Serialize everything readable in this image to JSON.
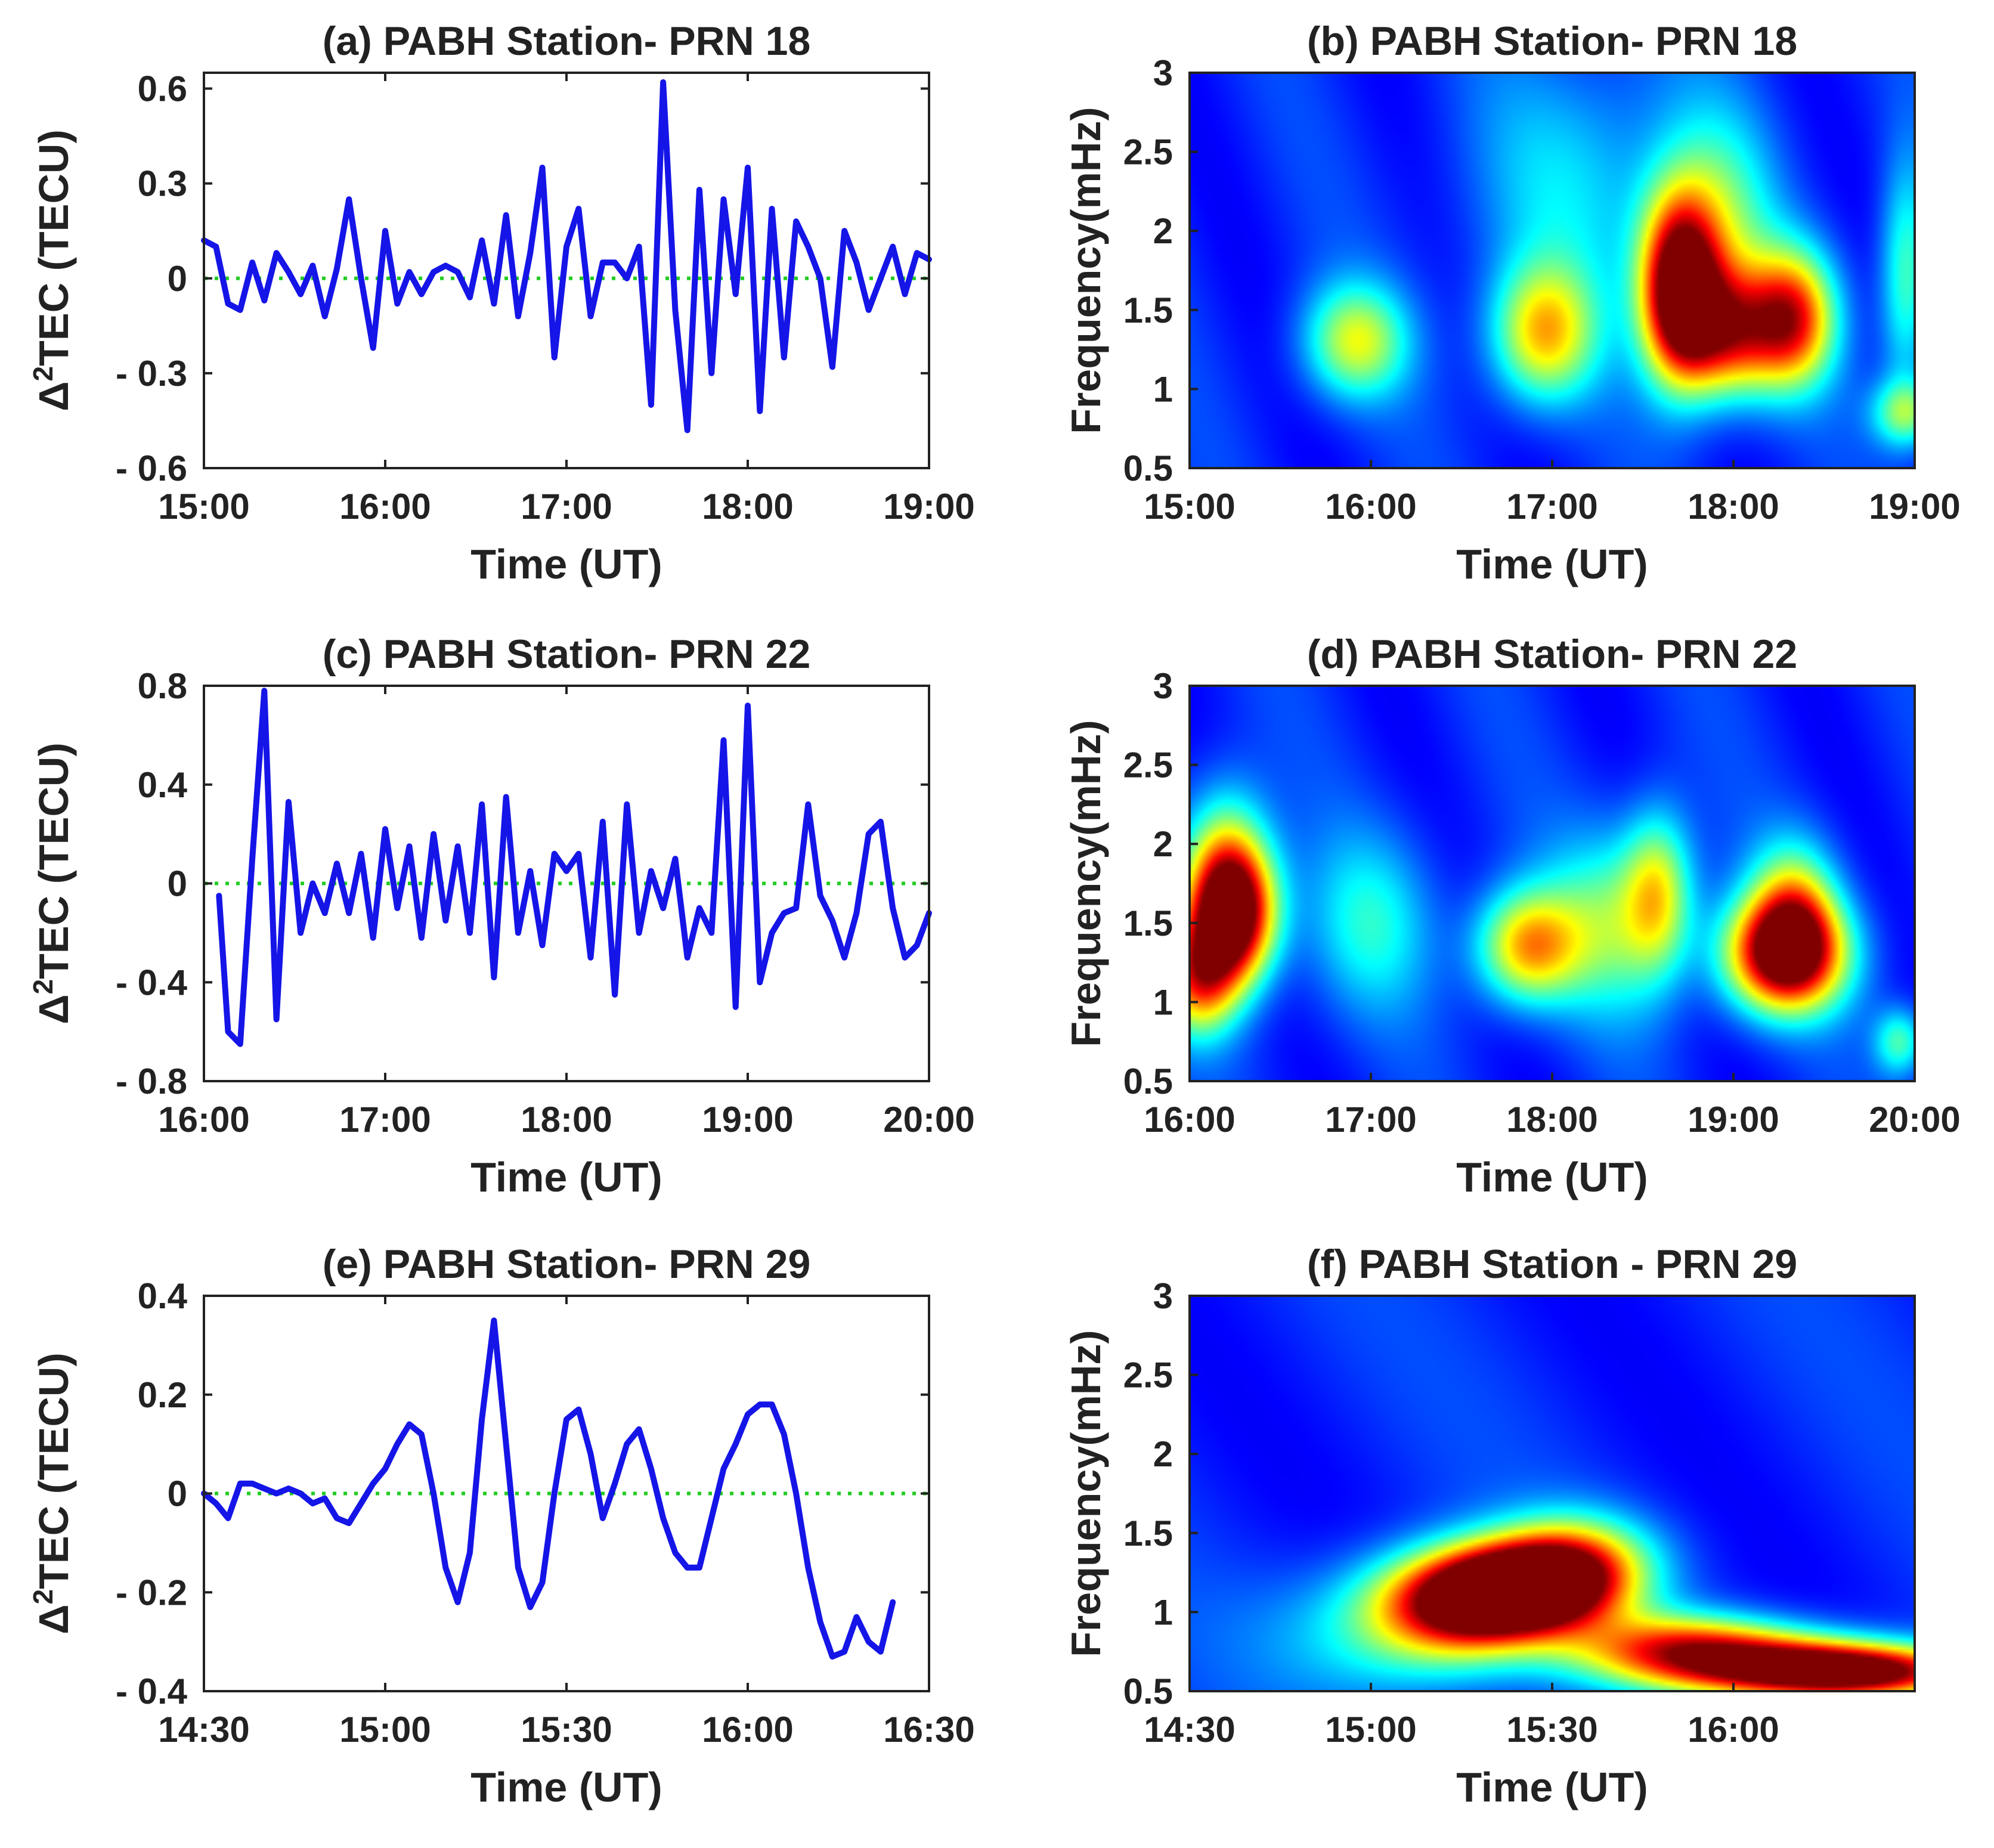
{
  "chart_data": [
    {
      "id": "a",
      "type": "line",
      "title": "(a) PABH Station- PRN 18",
      "xlabel": "Time (UT)",
      "ylabel_pre": "Δ",
      "ylabel_sup": "2",
      "ylabel_post": "TEC (TECU)",
      "xlim": [
        0,
        240
      ],
      "ylim": [
        -0.6,
        0.65
      ],
      "xticks": [
        0,
        60,
        120,
        180,
        240
      ],
      "xtick_labels": [
        "15:00",
        "16:00",
        "17:00",
        "18:00",
        "19:00"
      ],
      "yticks": [
        -0.6,
        -0.3,
        0,
        0.3,
        0.6
      ],
      "ytick_labels": [
        "- 0.6",
        "- 0.3",
        "0",
        "0.3",
        "0.6"
      ],
      "line_color": "#1515e8",
      "zero_color": "#22cc22",
      "series": [
        {
          "name": "Δ²TEC",
          "x": [
            0,
            4,
            8,
            12,
            16,
            20,
            24,
            28,
            32,
            36,
            40,
            44,
            48,
            52,
            56,
            60,
            64,
            68,
            72,
            76,
            80,
            84,
            88,
            92,
            96,
            100,
            104,
            108,
            112,
            116,
            120,
            124,
            128,
            132,
            136,
            140,
            144,
            148,
            152,
            156,
            160,
            164,
            168,
            172,
            176,
            180,
            184,
            188,
            192,
            196,
            200,
            204,
            208,
            212,
            216,
            220,
            224,
            228,
            232,
            236,
            240
          ],
          "y": [
            0.12,
            0.1,
            -0.08,
            -0.1,
            0.05,
            -0.07,
            0.08,
            0.02,
            -0.05,
            0.04,
            -0.12,
            0.03,
            0.25,
            0.0,
            -0.22,
            0.15,
            -0.08,
            0.02,
            -0.05,
            0.02,
            0.04,
            0.02,
            -0.06,
            0.12,
            -0.08,
            0.2,
            -0.12,
            0.08,
            0.35,
            -0.25,
            0.1,
            0.22,
            -0.12,
            0.05,
            0.05,
            0.0,
            0.1,
            -0.4,
            0.62,
            -0.1,
            -0.48,
            0.28,
            -0.3,
            0.25,
            -0.05,
            0.35,
            -0.42,
            0.22,
            -0.25,
            0.18,
            0.1,
            0.0,
            -0.28,
            0.15,
            0.05,
            -0.1,
            0.0,
            0.1,
            -0.05,
            0.08,
            0.06
          ]
        }
      ]
    },
    {
      "id": "b",
      "type": "heatmap",
      "title": "(b) PABH Station- PRN 18",
      "xlabel": "Time (UT)",
      "ylabel": "Frequency(mHz)",
      "xlim": [
        0,
        240
      ],
      "ylim": [
        0.5,
        3
      ],
      "xticks": [
        0,
        60,
        120,
        180,
        240
      ],
      "xtick_labels": [
        "15:00",
        "16:00",
        "17:00",
        "18:00",
        "19:00"
      ],
      "yticks": [
        0.5,
        1,
        1.5,
        2,
        2.5,
        3
      ],
      "ytick_labels": [
        "0.5",
        "1",
        "1.5",
        "2",
        "2.5",
        "3"
      ],
      "colormap": "jet",
      "blobs": [
        {
          "t": 55,
          "f": 1.3,
          "st": 12,
          "sf": 0.25,
          "a": 0.42
        },
        {
          "t": 117,
          "f": 1.35,
          "st": 12,
          "sf": 0.3,
          "a": 0.5
        },
        {
          "t": 162,
          "f": 1.65,
          "st": 9,
          "sf": 0.4,
          "a": 0.9
        },
        {
          "t": 178,
          "f": 1.35,
          "st": 13,
          "sf": 0.28,
          "a": 0.6
        },
        {
          "t": 200,
          "f": 1.45,
          "st": 10,
          "sf": 0.3,
          "a": 0.62
        },
        {
          "t": 175,
          "f": 2.0,
          "st": 13,
          "sf": 0.5,
          "a": 0.3
        },
        {
          "t": 237,
          "f": 0.85,
          "st": 8,
          "sf": 0.15,
          "a": 0.35
        },
        {
          "t": 237,
          "f": 1.7,
          "st": 6,
          "sf": 0.5,
          "a": 0.3
        },
        {
          "t": 130,
          "f": 2.3,
          "st": 25,
          "sf": 0.6,
          "a": 0.18
        }
      ]
    },
    {
      "id": "c",
      "type": "line",
      "title": "(c) PABH Station- PRN 22",
      "xlabel": "Time (UT)",
      "ylabel_pre": "Δ",
      "ylabel_sup": "2",
      "ylabel_post": "TEC (TECU)",
      "xlim": [
        0,
        240
      ],
      "ylim": [
        -0.8,
        0.8
      ],
      "xticks": [
        0,
        60,
        120,
        180,
        240
      ],
      "xtick_labels": [
        "16:00",
        "17:00",
        "18:00",
        "19:00",
        "20:00"
      ],
      "yticks": [
        -0.8,
        -0.4,
        0,
        0.4,
        0.8
      ],
      "ytick_labels": [
        "- 0.8",
        "- 0.4",
        "0",
        "0.4",
        "0.8"
      ],
      "line_color": "#1515e8",
      "zero_color": "#22cc22",
      "series": [
        {
          "name": "Δ²TEC",
          "x": [
            5,
            8,
            12,
            16,
            20,
            24,
            28,
            32,
            36,
            40,
            44,
            48,
            52,
            56,
            60,
            64,
            68,
            72,
            76,
            80,
            84,
            88,
            92,
            96,
            100,
            104,
            108,
            112,
            116,
            120,
            124,
            128,
            132,
            136,
            140,
            144,
            148,
            152,
            156,
            160,
            164,
            168,
            172,
            176,
            180,
            184,
            188,
            192,
            196,
            200,
            204,
            208,
            212,
            216,
            220,
            224,
            228,
            232,
            236,
            240
          ],
          "y": [
            -0.05,
            -0.6,
            -0.65,
            0.1,
            0.78,
            -0.55,
            0.33,
            -0.2,
            0.0,
            -0.12,
            0.08,
            -0.12,
            0.12,
            -0.22,
            0.22,
            -0.1,
            0.15,
            -0.22,
            0.2,
            -0.15,
            0.15,
            -0.2,
            0.32,
            -0.38,
            0.35,
            -0.2,
            0.05,
            -0.25,
            0.12,
            0.05,
            0.12,
            -0.3,
            0.25,
            -0.45,
            0.32,
            -0.2,
            0.05,
            -0.1,
            0.1,
            -0.3,
            -0.1,
            -0.2,
            0.58,
            -0.5,
            0.72,
            -0.4,
            -0.2,
            -0.12,
            -0.1,
            0.32,
            -0.05,
            -0.15,
            -0.3,
            -0.12,
            0.2,
            0.25,
            -0.1,
            -0.3,
            -0.25,
            -0.12
          ]
        }
      ]
    },
    {
      "id": "d",
      "type": "heatmap",
      "title": "(d) PABH Station- PRN 22",
      "xlabel": "Time (UT)",
      "ylabel": "Frequency(mHz)",
      "xlim": [
        0,
        240
      ],
      "ylim": [
        0.5,
        3
      ],
      "xticks": [
        0,
        60,
        120,
        180,
        240
      ],
      "xtick_labels": [
        "16:00",
        "17:00",
        "18:00",
        "19:00",
        "20:00"
      ],
      "yticks": [
        0.5,
        1,
        1.5,
        2,
        2.5,
        3
      ],
      "ytick_labels": [
        "0.5",
        "1",
        "1.5",
        "2",
        "2.5",
        "3"
      ],
      "colormap": "jet",
      "blobs": [
        {
          "t": 14,
          "f": 1.55,
          "st": 10,
          "sf": 0.3,
          "a": 0.95
        },
        {
          "t": 3,
          "f": 1.15,
          "st": 9,
          "sf": 0.25,
          "a": 0.55
        },
        {
          "t": 12,
          "f": 1.9,
          "st": 10,
          "sf": 0.35,
          "a": 0.35
        },
        {
          "t": 112,
          "f": 1.35,
          "st": 12,
          "sf": 0.25,
          "a": 0.55
        },
        {
          "t": 155,
          "f": 1.7,
          "st": 8,
          "sf": 0.35,
          "a": 0.4
        },
        {
          "t": 197,
          "f": 1.3,
          "st": 14,
          "sf": 0.25,
          "a": 0.9
        },
        {
          "t": 200,
          "f": 1.6,
          "st": 10,
          "sf": 0.3,
          "a": 0.4
        },
        {
          "t": 60,
          "f": 1.5,
          "st": 15,
          "sf": 0.4,
          "a": 0.22
        },
        {
          "t": 140,
          "f": 1.5,
          "st": 15,
          "sf": 0.4,
          "a": 0.3
        },
        {
          "t": 235,
          "f": 0.75,
          "st": 6,
          "sf": 0.15,
          "a": 0.3
        }
      ]
    },
    {
      "id": "e",
      "type": "line",
      "title": "(e) PABH Station- PRN 29",
      "xlabel": "Time (UT)",
      "ylabel_pre": "Δ",
      "ylabel_sup": "2",
      "ylabel_post": "TEC (TECU)",
      "xlim": [
        0,
        120
      ],
      "ylim": [
        -0.4,
        0.4
      ],
      "xticks": [
        0,
        30,
        60,
        90,
        120
      ],
      "xtick_labels": [
        "14:30",
        "15:00",
        "15:30",
        "16:00",
        "16:30"
      ],
      "yticks": [
        -0.4,
        -0.2,
        0,
        0.2,
        0.4
      ],
      "ytick_labels": [
        "- 0.4",
        "- 0.2",
        "0",
        "0.2",
        "0.4"
      ],
      "line_color": "#1515e8",
      "zero_color": "#22cc22",
      "series": [
        {
          "name": "Δ²TEC",
          "x": [
            0,
            2,
            4,
            6,
            8,
            10,
            12,
            14,
            16,
            18,
            20,
            22,
            24,
            26,
            28,
            30,
            32,
            34,
            36,
            38,
            40,
            42,
            44,
            46,
            48,
            50,
            52,
            54,
            56,
            58,
            60,
            62,
            64,
            66,
            68,
            70,
            72,
            74,
            76,
            78,
            80,
            82,
            84,
            86,
            88,
            90,
            92,
            94,
            96,
            98,
            100,
            102,
            104,
            106,
            108,
            110,
            112,
            114
          ],
          "y": [
            0.0,
            -0.02,
            -0.05,
            0.02,
            0.02,
            0.01,
            0.0,
            0.01,
            0.0,
            -0.02,
            -0.01,
            -0.05,
            -0.06,
            -0.02,
            0.02,
            0.05,
            0.1,
            0.14,
            0.12,
            0.0,
            -0.15,
            -0.22,
            -0.12,
            0.15,
            0.35,
            0.1,
            -0.15,
            -0.23,
            -0.18,
            0.0,
            0.15,
            0.17,
            0.08,
            -0.05,
            0.02,
            0.1,
            0.13,
            0.05,
            -0.05,
            -0.12,
            -0.15,
            -0.15,
            -0.05,
            0.05,
            0.1,
            0.16,
            0.18,
            0.18,
            0.12,
            0.0,
            -0.15,
            -0.26,
            -0.33,
            -0.32,
            -0.25,
            -0.3,
            -0.32,
            -0.22
          ]
        }
      ]
    },
    {
      "id": "f",
      "type": "heatmap",
      "title": "(f) PABH Station - PRN 29",
      "xlabel": "Time (UT)",
      "ylabel": "Frequency(mHz)",
      "xlim": [
        0,
        120
      ],
      "ylim": [
        0.5,
        3
      ],
      "xticks": [
        0,
        30,
        60,
        90
      ],
      "xtick_labels": [
        "14:30",
        "15:00",
        "15:30",
        "16:00"
      ],
      "yticks": [
        0.5,
        1,
        1.5,
        2,
        2.5,
        3
      ],
      "ytick_labels": [
        "0.5",
        "1",
        "1.5",
        "2",
        "2.5",
        "3"
      ],
      "colormap": "jet",
      "blobs": [
        {
          "t": 55,
          "f": 1.15,
          "st": 10,
          "sf": 0.2,
          "a": 0.95
        },
        {
          "t": 44,
          "f": 1.05,
          "st": 10,
          "sf": 0.22,
          "a": 0.6
        },
        {
          "t": 64,
          "f": 1.3,
          "st": 9,
          "sf": 0.22,
          "a": 0.5
        },
        {
          "t": 110,
          "f": 0.62,
          "st": 14,
          "sf": 0.12,
          "a": 0.95
        },
        {
          "t": 90,
          "f": 0.7,
          "st": 15,
          "sf": 0.15,
          "a": 0.55
        },
        {
          "t": 35,
          "f": 0.85,
          "st": 15,
          "sf": 0.3,
          "a": 0.25
        },
        {
          "t": 80,
          "f": 0.8,
          "st": 12,
          "sf": 0.15,
          "a": 0.35
        }
      ]
    }
  ]
}
